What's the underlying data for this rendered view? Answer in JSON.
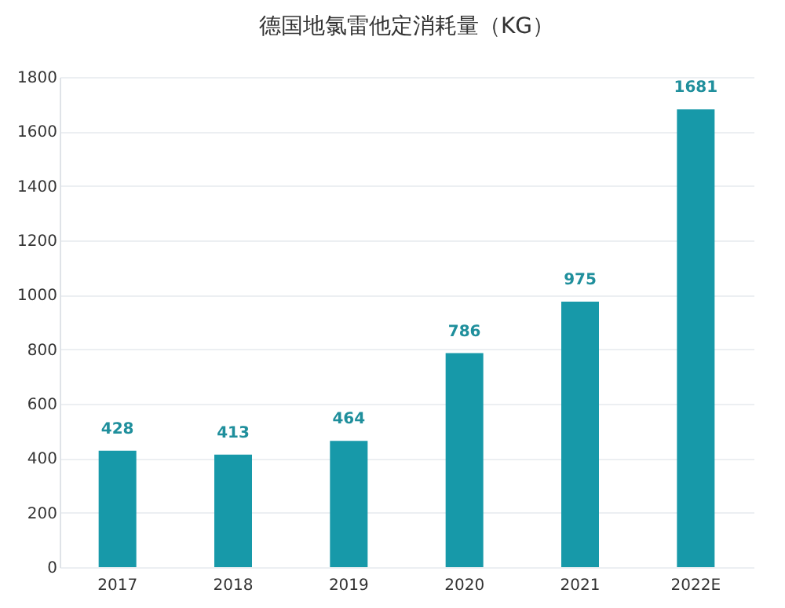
{
  "chart_data": {
    "type": "bar",
    "title": "德国地氯雷他定消耗量（KG）",
    "categories": [
      "2017",
      "2018",
      "2019",
      "2020",
      "2021",
      "2022E"
    ],
    "values": [
      428,
      413,
      464,
      786,
      975,
      1681
    ],
    "color": "#1799a9",
    "ylim": [
      0,
      1800
    ],
    "yticks": [
      0,
      200,
      400,
      600,
      800,
      1000,
      1200,
      1400,
      1600,
      1800
    ],
    "grid": "y",
    "data_labels": true
  }
}
